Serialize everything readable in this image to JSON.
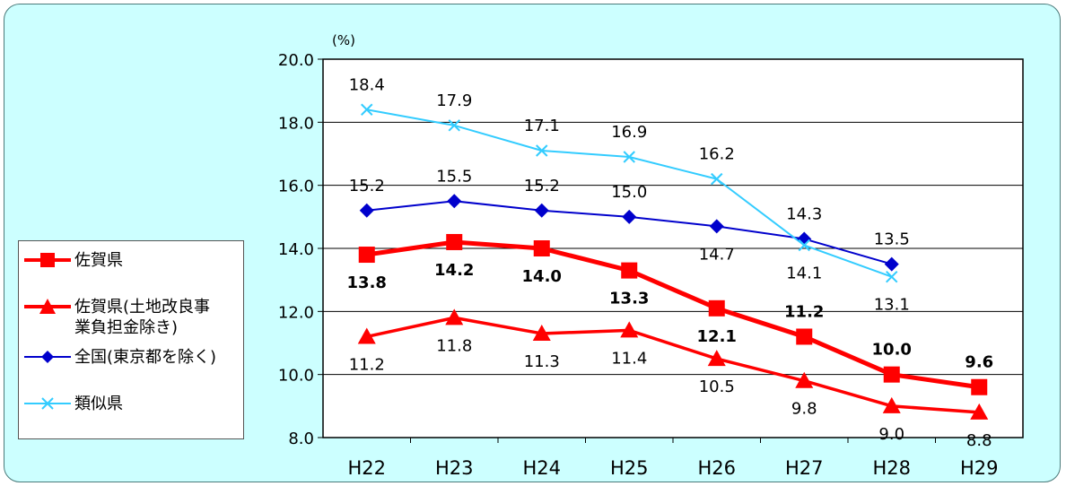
{
  "chart_data": {
    "type": "line",
    "unit": "(%)",
    "categories": [
      "H22",
      "H23",
      "H24",
      "H25",
      "H26",
      "H27",
      "H28",
      "H29"
    ],
    "ylim": [
      8.0,
      20.0
    ],
    "yticks": [
      "20.0",
      "18.0",
      "16.0",
      "14.0",
      "12.0",
      "10.0",
      "8.0"
    ],
    "grid": true,
    "legend_position": "left",
    "series": [
      {
        "name": "佐賀県",
        "color": "#ff0000",
        "marker": "square",
        "values": [
          13.8,
          14.2,
          14.0,
          13.3,
          12.1,
          11.2,
          10.0,
          9.6
        ],
        "labels": [
          "13.8",
          "14.2",
          "14.0",
          "13.3",
          "12.1",
          "11.2",
          "10.0",
          "9.6"
        ]
      },
      {
        "name": "佐賀県(土地改良事\n業負担金除き)",
        "color": "#ff0000",
        "marker": "triangle",
        "values": [
          11.2,
          11.8,
          11.3,
          11.4,
          10.5,
          9.8,
          9.0,
          8.8
        ],
        "labels": [
          "11.2",
          "11.8",
          "11.3",
          "11.4",
          "10.5",
          "9.8",
          "9.0",
          "8.8"
        ]
      },
      {
        "name": "全国(東京都を除く)",
        "color": "#0000cc",
        "marker": "diamond",
        "values": [
          15.2,
          15.5,
          15.2,
          15.0,
          14.7,
          14.3,
          13.5,
          null
        ],
        "labels": [
          "15.2",
          "15.5",
          "15.2",
          "15.0",
          "14.7",
          "14.3",
          "13.5",
          ""
        ]
      },
      {
        "name": "類似県",
        "color": "#33ccff",
        "marker": "x",
        "values": [
          18.4,
          17.9,
          17.1,
          16.9,
          16.2,
          14.1,
          13.1,
          null
        ],
        "labels": [
          "18.4",
          "17.9",
          "17.1",
          "16.9",
          "16.2",
          "14.1",
          "13.1",
          ""
        ]
      }
    ]
  }
}
